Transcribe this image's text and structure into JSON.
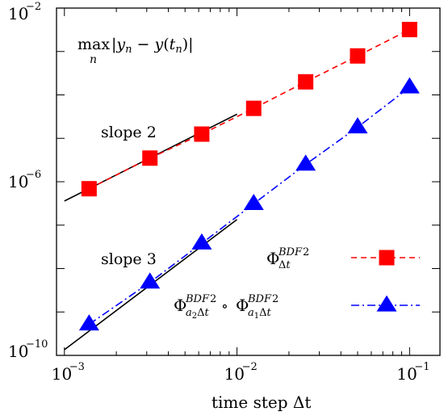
{
  "chart_data": {
    "type": "line",
    "xscale": "log",
    "yscale": "log",
    "xlim": [
      0.0009,
      0.15
    ],
    "ylim": [
      1e-10,
      0.01
    ],
    "xlabel": "time step Δt",
    "ylabel": "",
    "title": "",
    "grid": false,
    "x_ticks": [
      {
        "value": 0.001,
        "base": "10",
        "exp": "−3"
      },
      {
        "value": 0.01,
        "base": "10",
        "exp": "−2"
      },
      {
        "value": 0.1,
        "base": "10",
        "exp": "−1"
      }
    ],
    "y_ticks": [
      {
        "value": 1e-10,
        "base": "10",
        "exp": "−10"
      },
      {
        "value": 1e-06,
        "base": "10",
        "exp": "−6"
      },
      {
        "value": 0.01,
        "base": "10",
        "exp": "−2"
      }
    ],
    "annotations": {
      "quantity": "max |y_n − y(t_n)| over n",
      "slope2": "slope 2",
      "slope3": "slope 3"
    },
    "series": [
      {
        "name": "Φ_Δt^BDF2",
        "color": "#ff0000",
        "marker": "square",
        "line": "dashed",
        "x": [
          0.00139,
          0.00313,
          0.00625,
          0.0125,
          0.025,
          0.05,
          0.1
        ],
        "y": [
          6.9e-07,
          3.5e-06,
          1.25e-05,
          4.9e-05,
          0.0002,
          0.00079,
          0.0032
        ]
      },
      {
        "name": "Φ_a2Δt^BDF2 ∘ Φ_a1Δt^BDF2",
        "color": "#0000ff",
        "marker": "triangle",
        "line": "dashdot",
        "x": [
          0.00139,
          0.00313,
          0.00625,
          0.0125,
          0.025,
          0.05,
          0.1
        ],
        "y": [
          5.2e-10,
          4.8e-09,
          3.8e-08,
          3.1e-07,
          2.5e-06,
          1.8e-05,
          0.00015
        ]
      }
    ],
    "reference_lines": [
      {
        "label": "slope 2",
        "slope": 2,
        "x": [
          0.001,
          0.01
        ],
        "y": [
          3.6e-07,
          3.6e-05
        ],
        "color": "#000000"
      },
      {
        "label": "slope 3",
        "slope": 3,
        "x": [
          0.001,
          0.01
        ],
        "y": [
          1.35e-10,
          1.35e-07
        ],
        "color": "#000000"
      }
    ]
  }
}
